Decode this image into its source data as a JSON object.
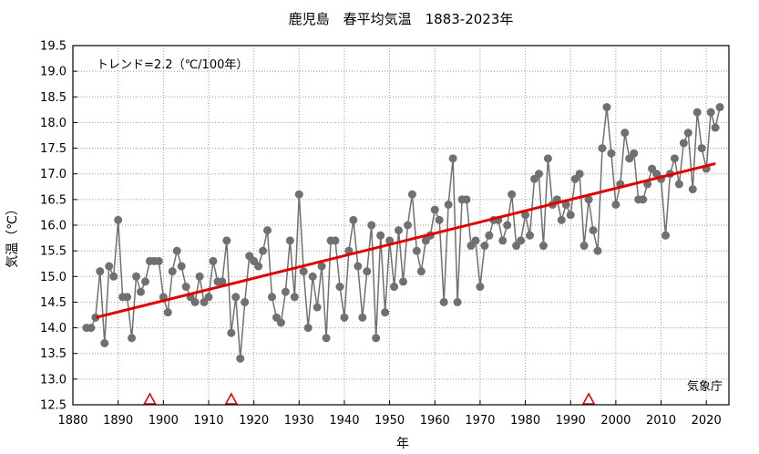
{
  "chart_data": {
    "type": "line",
    "title": "鹿児島　春平均気温　1883-2023年",
    "xlabel": "年",
    "ylabel": "気温（℃）",
    "trend_label": "トレンド=2.2（℃/100年）",
    "credit": "気象庁",
    "xlim": [
      1880,
      2025
    ],
    "ylim": [
      12.5,
      19.5
    ],
    "x_ticks": [
      1880,
      1890,
      1900,
      1910,
      1920,
      1930,
      1940,
      1950,
      1960,
      1970,
      1980,
      1990,
      2000,
      2010,
      2020
    ],
    "y_ticks": [
      "12.5",
      "13.0",
      "13.5",
      "14.0",
      "14.5",
      "15.0",
      "15.5",
      "16.0",
      "16.5",
      "17.0",
      "17.5",
      "18.0",
      "18.5",
      "19.0",
      "19.5"
    ],
    "grid": true,
    "series": [
      {
        "color": "#707070",
        "x": [
          1883,
          1884,
          1885,
          1886,
          1887,
          1888,
          1889,
          1890,
          1891,
          1892,
          1893,
          1894,
          1895,
          1896,
          1897,
          1898,
          1899,
          1900,
          1901,
          1902,
          1903,
          1904,
          1905,
          1906,
          1907,
          1908,
          1909,
          1910,
          1911,
          1912,
          1913,
          1914,
          1915,
          1916,
          1917,
          1918,
          1919,
          1920,
          1921,
          1922,
          1923,
          1924,
          1925,
          1926,
          1927,
          1928,
          1929,
          1930,
          1931,
          1932,
          1933,
          1934,
          1935,
          1936,
          1937,
          1938,
          1939,
          1940,
          1941,
          1942,
          1943,
          1944,
          1945,
          1946,
          1947,
          1948,
          1949,
          1950,
          1951,
          1952,
          1953,
          1954,
          1955,
          1956,
          1957,
          1958,
          1959,
          1960,
          1961,
          1962,
          1963,
          1964,
          1965,
          1966,
          1967,
          1968,
          1969,
          1970,
          1971,
          1972,
          1973,
          1974,
          1975,
          1976,
          1977,
          1978,
          1979,
          1980,
          1981,
          1982,
          1983,
          1984,
          1985,
          1986,
          1987,
          1988,
          1989,
          1990,
          1991,
          1992,
          1993,
          1994,
          1995,
          1996,
          1997,
          1998,
          1999,
          2000,
          2001,
          2002,
          2003,
          2004,
          2005,
          2006,
          2007,
          2008,
          2009,
          2010,
          2011,
          2012,
          2013,
          2014,
          2015,
          2016,
          2017,
          2018,
          2019,
          2020,
          2021,
          2022,
          2023
        ],
        "y": [
          14.0,
          14.0,
          14.2,
          15.1,
          13.7,
          15.2,
          15.0,
          16.1,
          14.6,
          14.6,
          13.8,
          15.0,
          14.7,
          14.9,
          15.3,
          15.3,
          15.3,
          14.6,
          14.3,
          15.1,
          15.5,
          15.2,
          14.8,
          14.6,
          14.5,
          15.0,
          14.5,
          14.6,
          15.3,
          14.9,
          14.9,
          15.7,
          13.9,
          14.6,
          13.4,
          14.5,
          15.4,
          15.3,
          15.2,
          15.5,
          15.9,
          14.6,
          14.2,
          14.1,
          14.7,
          15.7,
          14.6,
          16.6,
          15.1,
          14.0,
          15.0,
          14.4,
          15.2,
          13.8,
          15.7,
          15.7,
          14.8,
          14.2,
          15.5,
          16.1,
          15.2,
          14.2,
          15.1,
          16.0,
          13.8,
          15.8,
          14.3,
          15.7,
          14.8,
          15.9,
          14.9,
          16.0,
          16.6,
          15.5,
          15.1,
          15.7,
          15.8,
          16.3,
          16.1,
          14.5,
          16.4,
          17.3,
          14.5,
          16.5,
          16.5,
          15.6,
          15.7,
          14.8,
          15.6,
          15.8,
          16.1,
          16.1,
          15.7,
          16.0,
          16.6,
          15.6,
          15.7,
          16.2,
          15.8,
          16.9,
          17.0,
          15.6,
          17.3,
          16.4,
          16.5,
          16.1,
          16.4,
          16.2,
          16.9,
          17.0,
          15.6,
          16.5,
          15.9,
          15.5,
          17.5,
          18.3,
          17.4,
          16.4,
          16.8,
          17.8,
          17.3,
          17.4,
          16.5,
          16.5,
          16.8,
          17.1,
          17.0,
          16.9,
          15.8,
          17.0,
          17.3,
          16.8,
          17.6,
          17.8,
          16.7,
          18.2,
          17.5,
          17.1,
          18.2,
          17.9,
          18.3
        ]
      }
    ],
    "trend_line": {
      "color": "#e00000",
      "x": [
        1885,
        2022
      ],
      "y": [
        14.2,
        17.2
      ]
    },
    "station_change_years": [
      1897,
      1915,
      1994
    ],
    "marker_color": "#e00000"
  }
}
